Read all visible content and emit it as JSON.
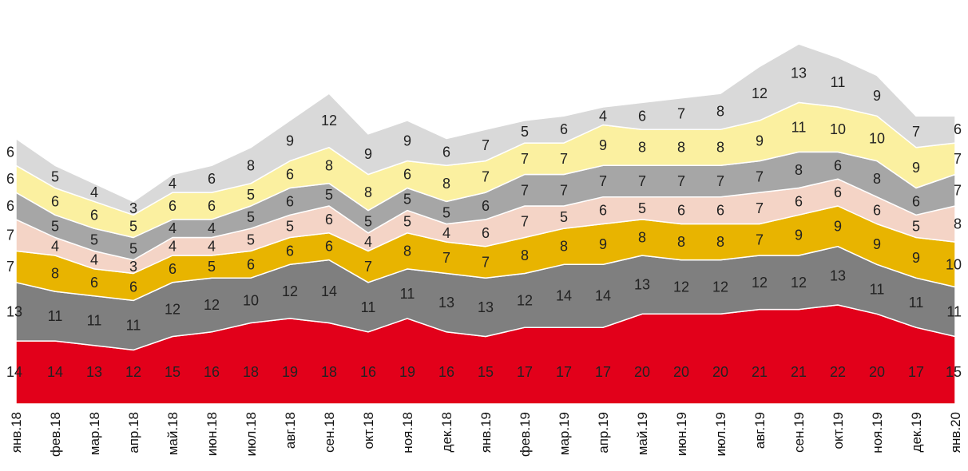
{
  "chart_data": {
    "type": "area",
    "stacked": true,
    "title": "",
    "xlabel": "",
    "ylabel": "",
    "ylim": [
      0,
      88
    ],
    "grid": false,
    "legend": "none",
    "data_labels": true,
    "categories": [
      "янв.18",
      "фев.18",
      "мар.18",
      "апр.18",
      "май.18",
      "июн.18",
      "июл.18",
      "авг.18",
      "сен.18",
      "окт.18",
      "ноя.18",
      "дек.18",
      "янв.19",
      "фев.19",
      "мар.19",
      "апр.19",
      "май.19",
      "июн.19",
      "июл.19",
      "авг.19",
      "сен.19",
      "окт.19",
      "ноя.19",
      "дек.19",
      "янв.20"
    ],
    "series": [
      {
        "color": "#e2001a",
        "values": [
          14,
          14,
          13,
          12,
          15,
          16,
          18,
          19,
          18,
          16,
          19,
          16,
          15,
          17,
          17,
          17,
          20,
          20,
          20,
          21,
          21,
          22,
          20,
          17,
          15
        ]
      },
      {
        "color": "#7f7f7f",
        "values": [
          13,
          11,
          11,
          11,
          12,
          12,
          10,
          12,
          14,
          11,
          11,
          13,
          13,
          12,
          14,
          14,
          13,
          12,
          12,
          12,
          12,
          13,
          11,
          11,
          11
        ]
      },
      {
        "color": "#e8b400",
        "values": [
          7,
          8,
          6,
          6,
          6,
          5,
          6,
          6,
          6,
          7,
          8,
          7,
          7,
          8,
          8,
          9,
          8,
          8,
          8,
          7,
          9,
          9,
          9,
          9,
          10
        ]
      },
      {
        "color": "#f4d4c6",
        "values": [
          7,
          4,
          4,
          3,
          4,
          4,
          5,
          5,
          6,
          4,
          5,
          4,
          6,
          7,
          5,
          6,
          5,
          6,
          6,
          7,
          6,
          6,
          6,
          5,
          8
        ]
      },
      {
        "color": "#a6a6a6",
        "values": [
          6,
          5,
          5,
          5,
          4,
          4,
          5,
          6,
          5,
          5,
          5,
          5,
          6,
          7,
          7,
          7,
          7,
          7,
          7,
          7,
          8,
          6,
          8,
          6,
          7
        ]
      },
      {
        "color": "#fbf0a0",
        "values": [
          6,
          6,
          6,
          5,
          6,
          6,
          5,
          6,
          8,
          8,
          6,
          8,
          7,
          7,
          7,
          9,
          8,
          8,
          8,
          9,
          11,
          10,
          10,
          9,
          7
        ]
      },
      {
        "color": "#d9d9d9",
        "values": [
          6,
          5,
          4,
          3,
          4,
          6,
          8,
          9,
          12,
          9,
          9,
          6,
          7,
          5,
          6,
          4,
          6,
          7,
          8,
          12,
          13,
          11,
          9,
          7,
          6
        ]
      }
    ]
  }
}
